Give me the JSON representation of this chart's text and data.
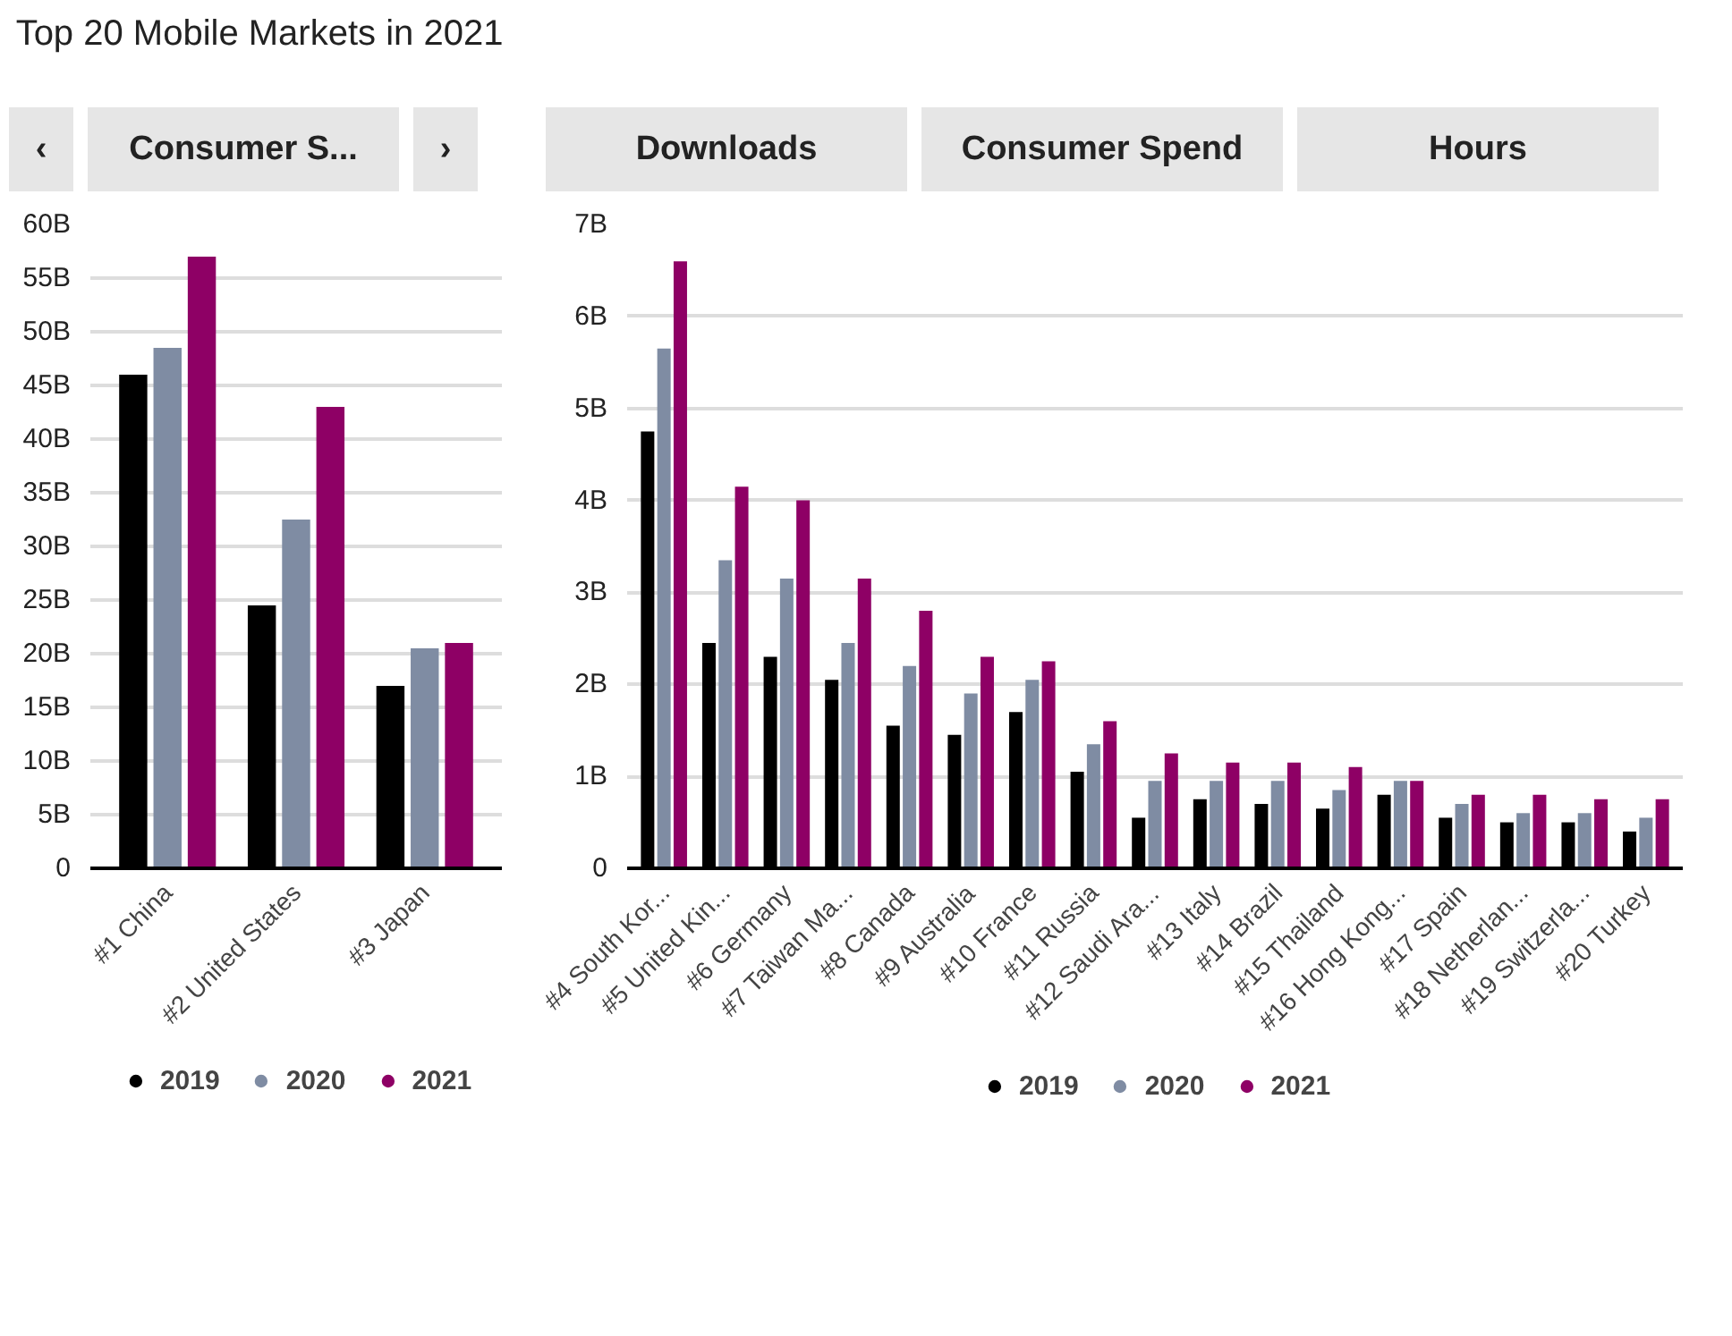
{
  "chart_data": [
    {
      "type": "bar",
      "title": "Top 20 Mobile Markets in 2021",
      "annotations": [
        "‹",
        "Consumer S...",
        "›"
      ],
      "categories": [
        "#1 China",
        "#2 United States",
        "#3 Japan"
      ],
      "series": [
        {
          "name": "2019",
          "color": "#000000",
          "values": [
            46,
            24.5,
            17
          ]
        },
        {
          "name": "2020",
          "color": "#7f8ca3",
          "values": [
            48.5,
            32.5,
            20.5
          ]
        },
        {
          "name": "2021",
          "color": "#8e0065",
          "values": [
            57,
            43,
            21
          ]
        }
      ],
      "ylim": [
        0,
        60
      ],
      "yticks": [
        0,
        {
          "value": 5,
          "label": "5B"
        },
        {
          "value": 10,
          "label": "10B"
        },
        {
          "value": 15,
          "label": "15B"
        },
        {
          "value": 20,
          "label": "20B"
        },
        {
          "value": 25,
          "label": "25B"
        },
        {
          "value": 30,
          "label": "30B"
        },
        {
          "value": 35,
          "label": "35B"
        },
        {
          "value": 40,
          "label": "40B"
        },
        {
          "value": 45,
          "label": "45B"
        },
        {
          "value": 50,
          "label": "50B"
        },
        {
          "value": 55,
          "label": "55B"
        },
        {
          "value": 60,
          "label": "60B"
        }
      ],
      "grid": "y",
      "legend": "bottom"
    },
    {
      "type": "bar",
      "annotations": [
        "Downloads",
        "Consumer Spend",
        "Hours"
      ],
      "categories": [
        "#4 South Kor...",
        "#5 United Kin...",
        "#6 Germany",
        "#7 Taiwan Ma...",
        "#8 Canada",
        "#9 Australia",
        "#10 France",
        "#11 Russia",
        "#12 Saudi Ara...",
        "#13 Italy",
        "#14 Brazil",
        "#15 Thailand",
        "#16 Hong Kong...",
        "#17 Spain",
        "#18 Netherlan...",
        "#19 Switzerla...",
        "#20 Turkey"
      ],
      "series": [
        {
          "name": "2019",
          "color": "#000000",
          "values": [
            4.75,
            2.45,
            2.3,
            2.05,
            1.55,
            1.45,
            1.7,
            1.05,
            0.55,
            0.75,
            0.7,
            0.65,
            0.8,
            0.55,
            0.5,
            0.5,
            0.4
          ]
        },
        {
          "name": "2020",
          "color": "#7f8ca3",
          "values": [
            5.65,
            3.35,
            3.15,
            2.45,
            2.2,
            1.9,
            2.05,
            1.35,
            0.95,
            0.95,
            0.95,
            0.85,
            0.95,
            0.7,
            0.6,
            0.6,
            0.55
          ]
        },
        {
          "name": "2021",
          "color": "#8e0065",
          "values": [
            6.6,
            4.15,
            4,
            3.15,
            2.8,
            2.3,
            2.25,
            1.6,
            1.25,
            1.15,
            1.15,
            1.1,
            0.95,
            0.8,
            0.8,
            0.75,
            0.75
          ]
        }
      ],
      "ylim": [
        0,
        7
      ],
      "yticks": [
        0,
        {
          "value": 1,
          "label": "1B"
        },
        {
          "value": 2,
          "label": "2B"
        },
        {
          "value": 3,
          "label": "3B"
        },
        {
          "value": 4,
          "label": "4B"
        },
        {
          "value": 5,
          "label": "5B"
        },
        {
          "value": 6,
          "label": "6B"
        },
        {
          "value": 7,
          "label": "7B"
        }
      ],
      "grid": "y",
      "legend": "bottom"
    }
  ]
}
